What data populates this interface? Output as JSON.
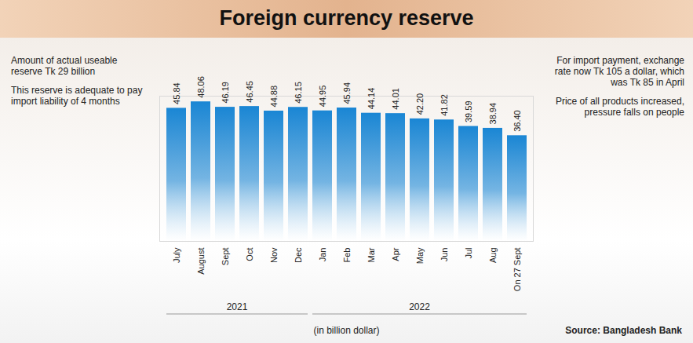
{
  "chart_data": {
    "type": "bar",
    "title": "Foreign currency reserve",
    "categories": [
      "July",
      "August",
      "Sept",
      "Oct",
      "Nov",
      "Dec",
      "Jan",
      "Feb",
      "Mar",
      "Apr",
      "May",
      "Jun",
      "Jul",
      "Aug",
      "On 27 Sept"
    ],
    "values": [
      45.84,
      48.06,
      46.19,
      46.45,
      44.88,
      46.15,
      44.95,
      45.94,
      44.14,
      44.01,
      42.2,
      41.82,
      39.59,
      38.94,
      36.4
    ],
    "value_labels": [
      "45.84",
      "48.06",
      "46.19",
      "46.45",
      "44.88",
      "46.15",
      "44.95",
      "45.94",
      "44.14",
      "44.01",
      "42.20",
      "41.82",
      "39.59",
      "38.94",
      "36.40"
    ],
    "x_groups": [
      {
        "label": "2021",
        "count": 6
      },
      {
        "label": "2022",
        "count": 9
      }
    ],
    "color": "#1a86d4",
    "ylim": [
      0,
      50
    ],
    "data_labels": true,
    "tick_labels": "x",
    "annotations_left": [
      "Amount of actual useable reserve Tk 29 billion",
      "This reserve is adequate to pay import liability of 4 months"
    ],
    "annotations_right": [
      "For import payment, exchange rate now Tk 105 a dollar, which was Tk 85 in April",
      "Price of all products increased, pressure falls on people"
    ],
    "unit_label": "(in billion dollar)",
    "source": "Source: Bangladesh Bank"
  }
}
